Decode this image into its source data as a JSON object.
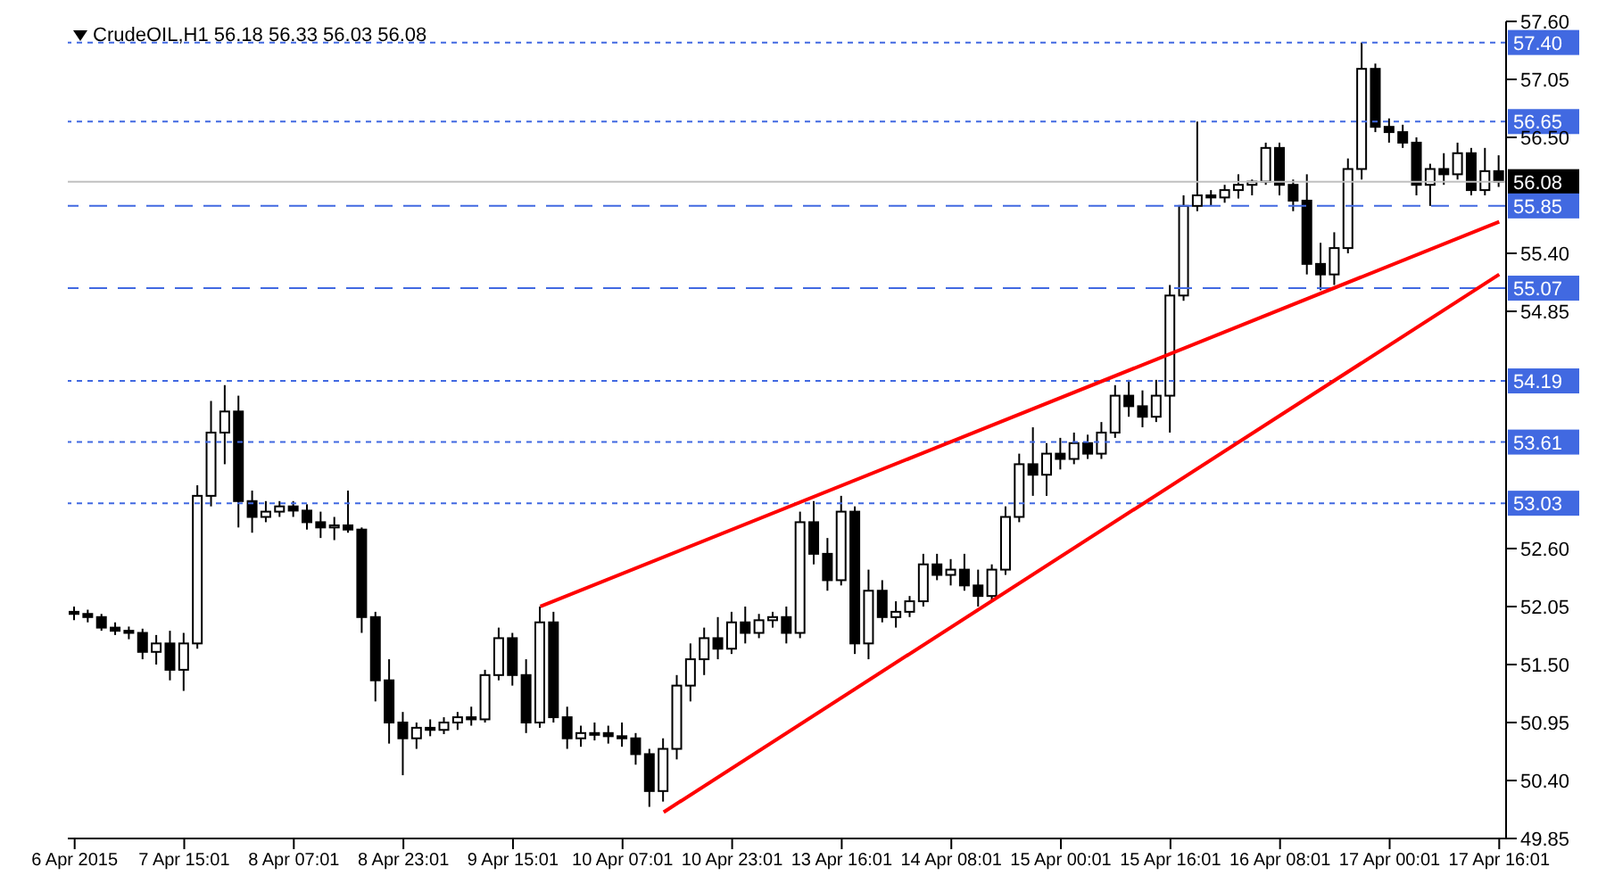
{
  "chart_data": {
    "type": "candlestick",
    "title": "CrudeOIL,H1  56.18 56.33 56.03 56.08",
    "color": "#000000",
    "categories": [
      "6 Apr 2015",
      null,
      null,
      null,
      null,
      null,
      null,
      null,
      "7 Apr 15:01",
      null,
      null,
      null,
      null,
      null,
      null,
      null,
      "8 Apr 07:01",
      null,
      null,
      null,
      null,
      null,
      null,
      null,
      "8 Apr 23:01",
      null,
      null,
      null,
      null,
      null,
      null,
      null,
      "9 Apr 15:01",
      null,
      null,
      null,
      null,
      null,
      null,
      null,
      "10 Apr 07:01",
      null,
      null,
      null,
      null,
      null,
      null,
      null,
      "10 Apr 23:01",
      null,
      null,
      null,
      null,
      null,
      null,
      null,
      "13 Apr 16:01",
      null,
      null,
      null,
      null,
      null,
      null,
      null,
      "14 Apr 08:01",
      null,
      null,
      null,
      null,
      null,
      null,
      null,
      "15 Apr 00:01",
      null,
      null,
      null,
      null,
      null,
      null,
      null,
      "15 Apr 16:01",
      null,
      null,
      null,
      null,
      null,
      null,
      null,
      "16 Apr 08:01",
      null,
      null,
      null,
      null,
      null,
      null,
      null,
      "17 Apr 00:01",
      null,
      null,
      null,
      null,
      null,
      null,
      null,
      "17 Apr 16:01"
    ],
    "ohlc": [
      [
        52.0,
        52.05,
        51.92,
        51.98
      ],
      [
        51.98,
        52.02,
        51.9,
        51.95
      ],
      [
        51.95,
        51.98,
        51.82,
        51.85
      ],
      [
        51.85,
        51.9,
        51.78,
        51.82
      ],
      [
        51.82,
        51.86,
        51.74,
        51.8
      ],
      [
        51.8,
        51.84,
        51.55,
        51.62
      ],
      [
        51.62,
        51.78,
        51.5,
        51.7
      ],
      [
        51.7,
        51.82,
        51.35,
        51.45
      ],
      [
        51.45,
        51.8,
        51.25,
        51.7
      ],
      [
        51.7,
        53.2,
        51.65,
        53.1
      ],
      [
        53.1,
        54.0,
        53.0,
        53.7
      ],
      [
        53.7,
        54.15,
        53.4,
        53.9
      ],
      [
        53.9,
        54.05,
        52.8,
        53.05
      ],
      [
        53.05,
        53.15,
        52.75,
        52.9
      ],
      [
        52.9,
        53.05,
        52.85,
        52.95
      ],
      [
        52.95,
        53.05,
        52.9,
        53.0
      ],
      [
        53.0,
        53.05,
        52.9,
        52.96
      ],
      [
        52.96,
        53.02,
        52.78,
        52.85
      ],
      [
        52.85,
        52.95,
        52.7,
        52.8
      ],
      [
        52.8,
        52.9,
        52.68,
        52.82
      ],
      [
        52.82,
        53.15,
        52.75,
        52.78
      ],
      [
        52.78,
        52.8,
        51.8,
        51.95
      ],
      [
        51.95,
        52.0,
        51.15,
        51.35
      ],
      [
        51.35,
        51.55,
        50.75,
        50.95
      ],
      [
        50.95,
        51.05,
        50.45,
        50.8
      ],
      [
        50.8,
        50.95,
        50.7,
        50.9
      ],
      [
        50.9,
        50.98,
        50.82,
        50.88
      ],
      [
        50.88,
        51.0,
        50.84,
        50.95
      ],
      [
        50.95,
        51.05,
        50.88,
        51.0
      ],
      [
        51.0,
        51.1,
        50.92,
        50.98
      ],
      [
        50.98,
        51.45,
        50.95,
        51.4
      ],
      [
        51.4,
        51.85,
        51.35,
        51.75
      ],
      [
        51.75,
        51.8,
        51.3,
        51.4
      ],
      [
        51.4,
        51.55,
        50.85,
        50.95
      ],
      [
        50.95,
        52.05,
        50.9,
        51.9
      ],
      [
        51.9,
        52.0,
        50.95,
        51.0
      ],
      [
        51.0,
        51.1,
        50.7,
        50.8
      ],
      [
        50.8,
        50.92,
        50.72,
        50.85
      ],
      [
        50.85,
        50.95,
        50.78,
        50.85
      ],
      [
        50.85,
        50.92,
        50.75,
        50.82
      ],
      [
        50.82,
        50.95,
        50.72,
        50.8
      ],
      [
        50.8,
        50.85,
        50.55,
        50.65
      ],
      [
        50.65,
        50.7,
        50.15,
        50.3
      ],
      [
        50.3,
        50.8,
        50.2,
        50.7
      ],
      [
        50.7,
        51.4,
        50.6,
        51.3
      ],
      [
        51.3,
        51.7,
        51.15,
        51.55
      ],
      [
        51.55,
        51.85,
        51.4,
        51.75
      ],
      [
        51.75,
        51.95,
        51.55,
        51.65
      ],
      [
        51.65,
        52.0,
        51.6,
        51.9
      ],
      [
        51.9,
        52.05,
        51.7,
        51.8
      ],
      [
        51.8,
        51.98,
        51.75,
        51.92
      ],
      [
        51.92,
        52.0,
        51.85,
        51.95
      ],
      [
        51.95,
        52.05,
        51.7,
        51.8
      ],
      [
        51.8,
        52.95,
        51.75,
        52.85
      ],
      [
        52.85,
        53.05,
        52.45,
        52.55
      ],
      [
        52.55,
        52.7,
        52.2,
        52.3
      ],
      [
        52.3,
        53.1,
        52.25,
        52.95
      ],
      [
        52.95,
        53.0,
        51.6,
        51.7
      ],
      [
        51.7,
        52.4,
        51.55,
        52.2
      ],
      [
        52.2,
        52.3,
        51.9,
        51.95
      ],
      [
        51.95,
        52.1,
        51.85,
        52.0
      ],
      [
        52.0,
        52.15,
        51.95,
        52.1
      ],
      [
        52.1,
        52.55,
        52.05,
        52.45
      ],
      [
        52.45,
        52.55,
        52.3,
        52.35
      ],
      [
        52.35,
        52.5,
        52.25,
        52.4
      ],
      [
        52.4,
        52.55,
        52.2,
        52.25
      ],
      [
        52.25,
        52.4,
        52.05,
        52.15
      ],
      [
        52.15,
        52.45,
        52.1,
        52.4
      ],
      [
        52.4,
        53.0,
        52.35,
        52.9
      ],
      [
        52.9,
        53.5,
        52.85,
        53.4
      ],
      [
        53.4,
        53.75,
        53.1,
        53.3
      ],
      [
        53.3,
        53.6,
        53.1,
        53.5
      ],
      [
        53.5,
        53.65,
        53.35,
        53.45
      ],
      [
        53.45,
        53.7,
        53.4,
        53.6
      ],
      [
        53.6,
        53.68,
        53.45,
        53.5
      ],
      [
        53.5,
        53.8,
        53.45,
        53.7
      ],
      [
        53.7,
        54.15,
        53.65,
        54.05
      ],
      [
        54.05,
        54.2,
        53.85,
        53.95
      ],
      [
        53.95,
        54.1,
        53.75,
        53.85
      ],
      [
        53.85,
        54.2,
        53.8,
        54.05
      ],
      [
        54.05,
        55.1,
        53.7,
        55.0
      ],
      [
        55.0,
        55.95,
        54.95,
        55.85
      ],
      [
        55.85,
        56.65,
        55.8,
        55.95
      ],
      [
        55.95,
        56.0,
        55.85,
        55.93
      ],
      [
        55.93,
        56.05,
        55.88,
        56.0
      ],
      [
        56.0,
        56.15,
        55.92,
        56.05
      ],
      [
        56.05,
        56.1,
        55.95,
        56.08
      ],
      [
        56.08,
        56.45,
        56.05,
        56.4
      ],
      [
        56.4,
        56.45,
        55.95,
        56.05
      ],
      [
        56.05,
        56.1,
        55.8,
        55.9
      ],
      [
        55.9,
        56.15,
        55.2,
        55.3
      ],
      [
        55.3,
        55.5,
        55.05,
        55.2
      ],
      [
        55.2,
        55.6,
        55.1,
        55.45
      ],
      [
        55.45,
        56.3,
        55.4,
        56.2
      ],
      [
        56.2,
        57.4,
        56.1,
        57.15
      ],
      [
        57.15,
        57.2,
        56.55,
        56.6
      ],
      [
        56.6,
        56.68,
        56.45,
        56.55
      ],
      [
        56.55,
        56.62,
        56.4,
        56.45
      ],
      [
        56.45,
        56.5,
        55.95,
        56.05
      ],
      [
        56.05,
        56.25,
        55.85,
        56.2
      ],
      [
        56.2,
        56.35,
        56.05,
        56.15
      ],
      [
        56.15,
        56.45,
        56.1,
        56.35
      ],
      [
        56.35,
        56.4,
        55.95,
        56.0
      ],
      [
        56.0,
        56.4,
        55.95,
        56.18
      ],
      [
        56.18,
        56.33,
        56.03,
        56.08
      ]
    ],
    "series": [
      {
        "type": "line",
        "color": "#ff0000",
        "values": [
          null,
          null,
          null,
          null,
          null,
          null,
          null,
          null,
          null,
          null,
          null,
          null,
          null,
          null,
          null,
          null,
          null,
          null,
          null,
          null,
          null,
          null,
          null,
          null,
          null,
          null,
          null,
          null,
          null,
          null,
          null,
          null,
          null,
          null,
          52.05,
          null,
          null,
          null,
          null,
          null,
          null,
          null,
          null,
          null,
          null,
          null,
          null,
          null,
          null,
          null,
          null,
          null,
          null,
          null,
          null,
          null,
          null,
          null,
          null,
          null,
          null,
          null,
          null,
          null,
          null,
          null,
          null,
          null,
          null,
          null,
          null,
          null,
          null,
          null,
          null,
          null,
          null,
          null,
          null,
          null,
          null,
          null,
          null,
          null,
          null,
          null,
          null,
          null,
          null,
          null,
          null,
          null,
          null,
          null,
          null,
          null,
          null,
          null,
          null,
          null,
          null,
          null,
          null,
          null,
          55.7
        ]
      },
      {
        "type": "line",
        "color": "#ff0000",
        "values": [
          null,
          null,
          null,
          null,
          null,
          null,
          null,
          null,
          null,
          null,
          null,
          null,
          null,
          null,
          null,
          null,
          null,
          null,
          null,
          null,
          null,
          null,
          null,
          null,
          null,
          null,
          null,
          null,
          null,
          null,
          null,
          null,
          null,
          null,
          null,
          null,
          null,
          null,
          null,
          null,
          null,
          null,
          null,
          50.1,
          null,
          null,
          null,
          null,
          null,
          null,
          null,
          null,
          null,
          null,
          null,
          null,
          null,
          null,
          null,
          null,
          null,
          null,
          null,
          null,
          null,
          null,
          null,
          null,
          null,
          null,
          null,
          null,
          null,
          null,
          null,
          null,
          null,
          null,
          null,
          null,
          null,
          null,
          null,
          null,
          null,
          null,
          null,
          null,
          null,
          null,
          null,
          null,
          null,
          null,
          null,
          null,
          null,
          null,
          null,
          null,
          null,
          null,
          null,
          null,
          55.2
        ]
      }
    ],
    "ylim": [
      49.85,
      57.6
    ],
    "yticks": [
      {
        "value": 49.85,
        "label": "49.85"
      },
      {
        "value": 50.4,
        "label": "50.40"
      },
      {
        "value": 50.95,
        "label": "50.95"
      },
      {
        "value": 51.5,
        "label": "51.50"
      },
      {
        "value": 52.05,
        "label": "52.05"
      },
      {
        "value": 52.6,
        "label": "52.60"
      },
      {
        "value": 54.85,
        "label": "54.85"
      },
      {
        "value": 55.4,
        "label": "55.40"
      },
      {
        "value": 56.5,
        "label": "56.50"
      },
      {
        "value": 57.05,
        "label": "57.05"
      },
      {
        "value": 57.6,
        "label": "57.60"
      }
    ],
    "ref_lines": [
      {
        "axis": "y",
        "value": 57.4,
        "label": "57.40",
        "color": "#4169e1",
        "line_style": "dotted"
      },
      {
        "axis": "y",
        "value": 56.65,
        "label": "56.65",
        "color": "#4169e1",
        "line_style": "dotted"
      },
      {
        "axis": "y",
        "value": 56.08,
        "label": "56.08",
        "color": "#c0c0c0",
        "line_style": "solid"
      },
      {
        "axis": "y",
        "value": 55.85,
        "label": "55.85",
        "color": "#4169e1",
        "line_style": "dashed"
      },
      {
        "axis": "y",
        "value": 55.07,
        "label": "55.07",
        "color": "#4169e1",
        "line_style": "dashed"
      },
      {
        "axis": "y",
        "value": 54.19,
        "label": "54.19",
        "color": "#4169e1",
        "line_style": "dotted"
      },
      {
        "axis": "y",
        "value": 53.61,
        "label": "53.61",
        "color": "#4169e1",
        "line_style": "dotted"
      },
      {
        "axis": "y",
        "value": 53.03,
        "label": "53.03",
        "color": "#4169e1",
        "line_style": "dotted"
      }
    ],
    "tick_labels": true
  }
}
